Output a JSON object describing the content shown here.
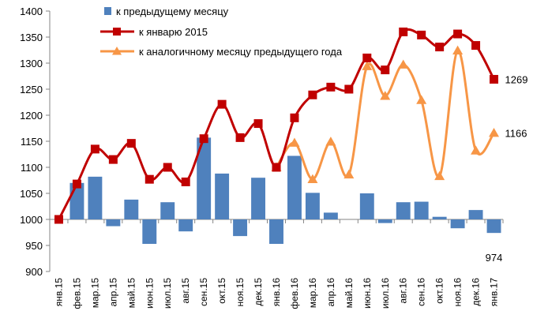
{
  "chart_data": {
    "type": "bar",
    "categories": [
      "янв.15",
      "фев.15",
      "мар.15",
      "апр.15",
      "май.15",
      "июн.15",
      "июл.15",
      "авг.15",
      "сен.15",
      "окт.15",
      "ноя.15",
      "дек.15",
      "янв.16",
      "фев.16",
      "мар.16",
      "апр.16",
      "май.16",
      "июн.16",
      "июл.16",
      "авг.16",
      "сен.16",
      "окт.16",
      "ноя.16",
      "дек.16",
      "янв.17"
    ],
    "ylim": [
      900,
      1400
    ],
    "yticks": [
      900,
      950,
      1000,
      1050,
      1100,
      1150,
      1200,
      1250,
      1300,
      1350,
      1400
    ],
    "grid": false,
    "legend_position": "top-left",
    "series": [
      {
        "name": "к предыдущему месяцу",
        "type": "bar",
        "color": "#4F81BD",
        "values": [
          null,
          1070,
          1082,
          987,
          1038,
          953,
          1033,
          977,
          1157,
          1088,
          968,
          1080,
          953,
          1122,
          1051,
          1013,
          null,
          1050,
          993,
          1033,
          1034,
          1005,
          983,
          1018,
          974
        ]
      },
      {
        "name": "к январю 2015",
        "type": "line",
        "marker": "square",
        "color": "#C00000",
        "values": [
          1000,
          1068,
          1135,
          1115,
          1146,
          1077,
          1100,
          1072,
          1155,
          1221,
          1157,
          1184,
          1100,
          1195,
          1239,
          1254,
          1250,
          1310,
          1287,
          1360,
          1354,
          1331,
          1356,
          1334,
          1269
        ]
      },
      {
        "name": "к аналогичному месяцу предыдущего года",
        "type": "line",
        "marker": "triangle",
        "color": "#F79646",
        "values": [
          null,
          null,
          null,
          null,
          null,
          null,
          null,
          null,
          null,
          null,
          null,
          null,
          1100,
          1147,
          1077,
          1149,
          1086,
          1294,
          1237,
          1297,
          1229,
          1083,
          1324,
          1132,
          1166
        ]
      }
    ],
    "data_labels": [
      {
        "series": 1,
        "index": 24,
        "text": "1269"
      },
      {
        "series": 2,
        "index": 24,
        "text": "1166"
      },
      {
        "series": 0,
        "index": 24,
        "text": "974"
      }
    ]
  }
}
